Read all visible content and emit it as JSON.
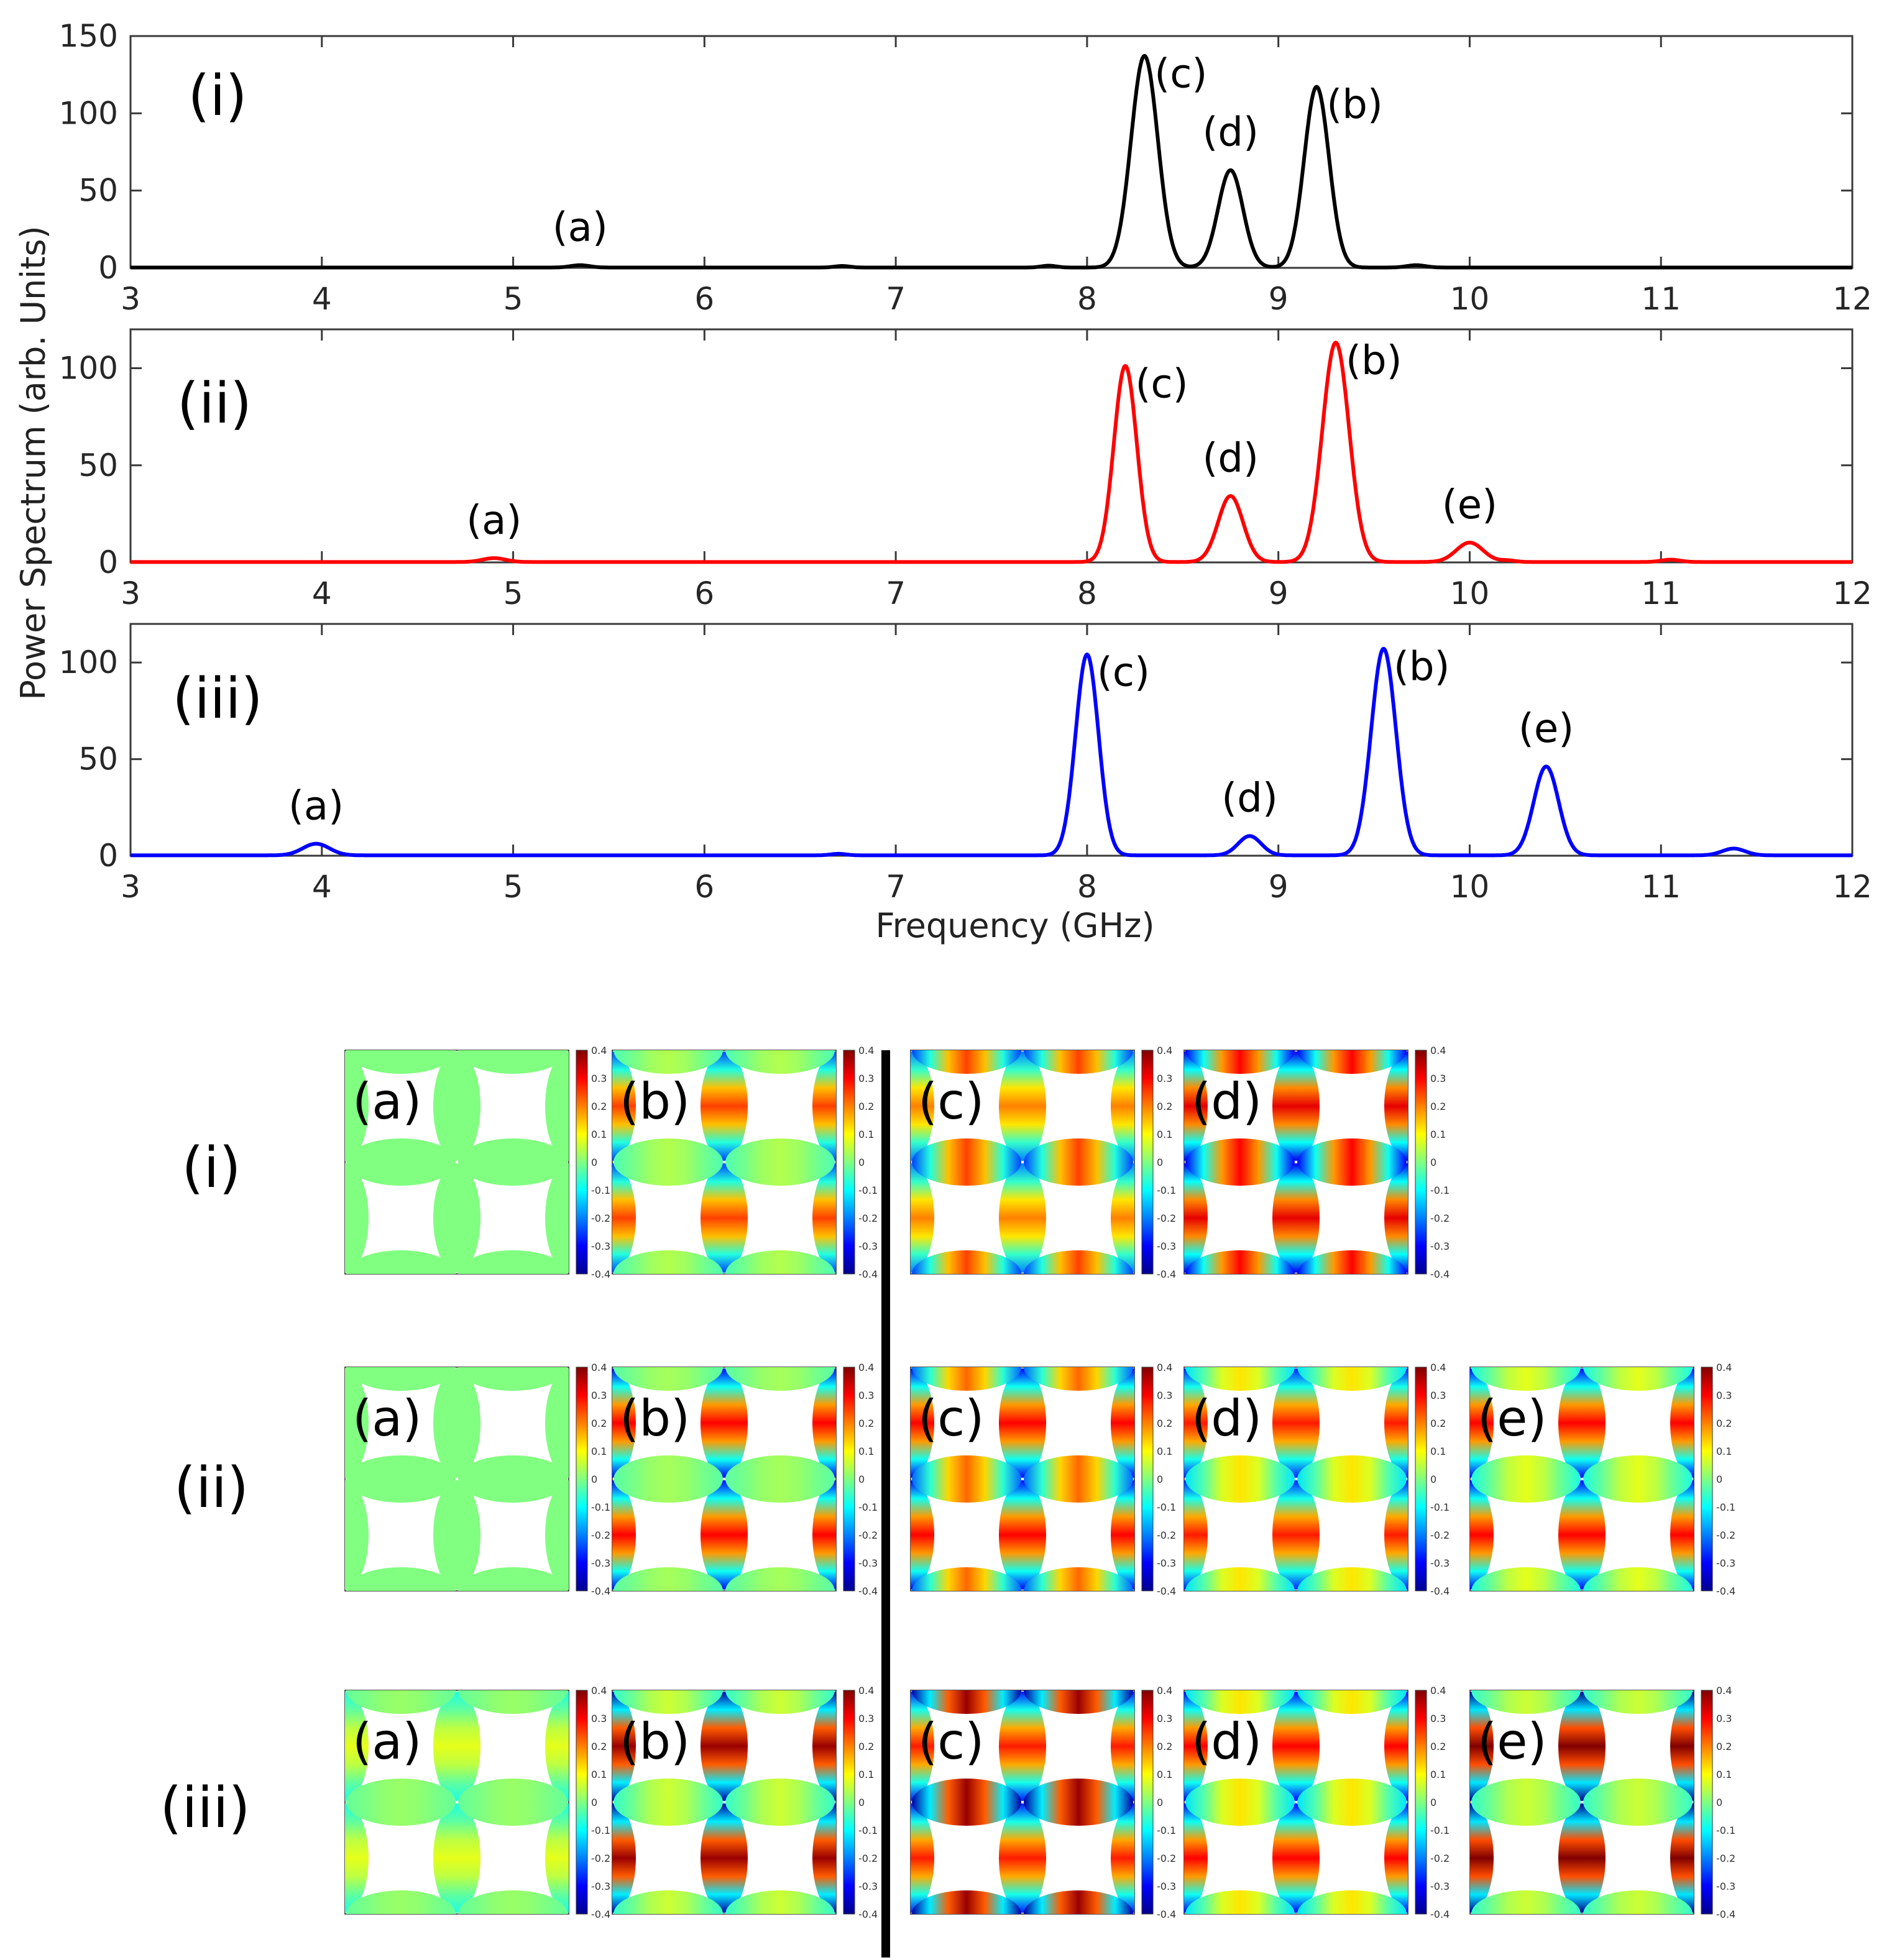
{
  "chart_data": {
    "type": "line",
    "ylabel": "Power Spectrum (arb. Units)",
    "xlabel": "Frequency (GHz)",
    "xlim": [
      3,
      12
    ],
    "xticks": [
      3,
      4,
      5,
      6,
      7,
      8,
      9,
      10,
      11,
      12
    ],
    "panels": [
      {
        "label": "(i)",
        "color": "#000000",
        "ylim": [
          0,
          150
        ],
        "yticks": [
          0,
          50,
          100,
          150
        ],
        "peaks": [
          {
            "f": 5.35,
            "a": 1.5,
            "w": 0.05
          },
          {
            "f": 6.72,
            "a": 1.0,
            "w": 0.04
          },
          {
            "f": 7.8,
            "a": 1.2,
            "w": 0.04
          },
          {
            "f": 8.3,
            "a": 137,
            "w": 0.07
          },
          {
            "f": 8.75,
            "a": 63,
            "w": 0.065
          },
          {
            "f": 9.2,
            "a": 117,
            "w": 0.065
          },
          {
            "f": 9.72,
            "a": 1.5,
            "w": 0.05
          }
        ],
        "annotations": [
          {
            "text": "(a)",
            "f": 5.35,
            "v": 1.5
          },
          {
            "text": "(c)",
            "f": 8.3,
            "v": 137
          },
          {
            "text": "(d)",
            "f": 8.75,
            "v": 63
          },
          {
            "text": "(b)",
            "f": 9.2,
            "v": 117
          }
        ]
      },
      {
        "label": "(ii)",
        "color": "#ff0000",
        "ylim": [
          0,
          120
        ],
        "yticks": [
          0,
          50,
          100
        ],
        "peaks": [
          {
            "f": 4.9,
            "a": 2,
            "w": 0.06
          },
          {
            "f": 8.2,
            "a": 101,
            "w": 0.06
          },
          {
            "f": 8.75,
            "a": 34,
            "w": 0.065
          },
          {
            "f": 9.3,
            "a": 113,
            "w": 0.07
          },
          {
            "f": 10.0,
            "a": 10,
            "w": 0.07
          },
          {
            "f": 10.2,
            "a": 0.8,
            "w": 0.04
          },
          {
            "f": 11.05,
            "a": 1.2,
            "w": 0.05
          }
        ],
        "annotations": [
          {
            "text": "(a)",
            "f": 4.9,
            "v": 2
          },
          {
            "text": "(c)",
            "f": 8.2,
            "v": 101
          },
          {
            "text": "(d)",
            "f": 8.75,
            "v": 34
          },
          {
            "text": "(b)",
            "f": 9.3,
            "v": 113
          },
          {
            "text": "(e)",
            "f": 10.0,
            "v": 10
          }
        ]
      },
      {
        "label": "(iii)",
        "color": "#0000ff",
        "ylim": [
          0,
          120
        ],
        "yticks": [
          0,
          50,
          100
        ],
        "peaks": [
          {
            "f": 3.97,
            "a": 6,
            "w": 0.07
          },
          {
            "f": 6.7,
            "a": 0.8,
            "w": 0.04
          },
          {
            "f": 8.0,
            "a": 104,
            "w": 0.06
          },
          {
            "f": 8.85,
            "a": 10,
            "w": 0.06
          },
          {
            "f": 9.55,
            "a": 107,
            "w": 0.065
          },
          {
            "f": 10.4,
            "a": 46,
            "w": 0.065
          },
          {
            "f": 11.38,
            "a": 3.5,
            "w": 0.06
          }
        ],
        "annotations": [
          {
            "text": "(a)",
            "f": 3.97,
            "v": 6
          },
          {
            "text": "(c)",
            "f": 8.0,
            "v": 104
          },
          {
            "text": "(d)",
            "f": 8.85,
            "v": 10
          },
          {
            "text": "(b)",
            "f": 9.55,
            "v": 107
          },
          {
            "text": "(e)",
            "f": 10.4,
            "v": 46
          }
        ]
      }
    ]
  },
  "modes": {
    "colorbar_ticks": [
      "0.4",
      "0.3",
      "0.2",
      "0.1",
      "0",
      "-0.1",
      "-0.2",
      "-0.3",
      "-0.4"
    ],
    "colormap": [
      "#00008f",
      "#0000ff",
      "#0080ff",
      "#00ffff",
      "#80ff80",
      "#ffff00",
      "#ff8000",
      "#ff0000",
      "#800000"
    ],
    "rows": [
      {
        "label": "(i)",
        "maps": [
          {
            "label": "(a)",
            "v": 0.0,
            "h": 0.0
          },
          {
            "label": "(b)",
            "v": 0.25,
            "h": 0.04
          },
          {
            "label": "(c)",
            "v": 0.2,
            "h": 0.25
          },
          {
            "label": "(d)",
            "v": 0.32,
            "h": 0.3
          }
        ]
      },
      {
        "label": "(ii)",
        "maps": [
          {
            "label": "(a)",
            "v": 0.0,
            "h": 0.0
          },
          {
            "label": "(b)",
            "v": 0.3,
            "h": 0.03
          },
          {
            "label": "(c)",
            "v": 0.3,
            "h": 0.22
          },
          {
            "label": "(d)",
            "v": 0.28,
            "h": 0.12
          },
          {
            "label": "(e)",
            "v": 0.3,
            "h": 0.08
          }
        ]
      },
      {
        "label": "(iii)",
        "maps": [
          {
            "label": "(a)",
            "v": 0.08,
            "h": 0.02
          },
          {
            "label": "(b)",
            "v": 0.38,
            "h": 0.06
          },
          {
            "label": "(c)",
            "v": 0.28,
            "h": 0.38
          },
          {
            "label": "(d)",
            "v": 0.3,
            "h": 0.12
          },
          {
            "label": "(e)",
            "v": 0.4,
            "h": 0.06
          }
        ]
      }
    ]
  }
}
